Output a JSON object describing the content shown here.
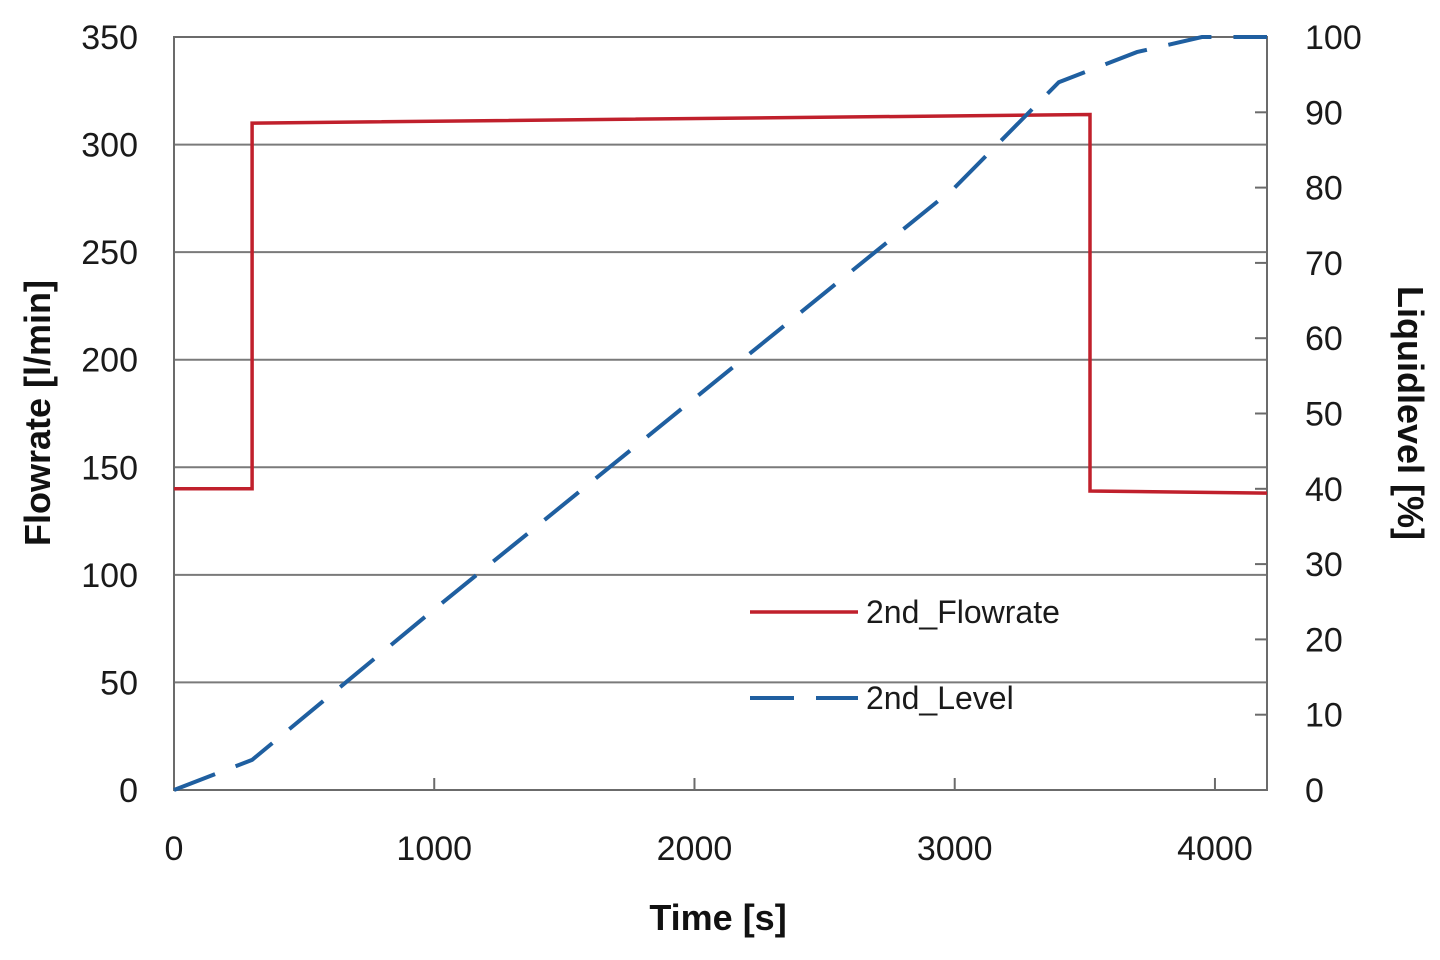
{
  "chart_data": {
    "type": "line",
    "title": "",
    "xlabel": "Time [s]",
    "ylabel": "Flowrate [l/min]",
    "y2label": "Liquidlevel [%]",
    "xlim": [
      0,
      4200
    ],
    "ylim": [
      0,
      350
    ],
    "y2lim": [
      0,
      100
    ],
    "xticks": [
      0,
      1000,
      2000,
      3000,
      4000
    ],
    "yticks": [
      0,
      50,
      100,
      150,
      200,
      250,
      300,
      350
    ],
    "y2ticks": [
      0,
      10,
      20,
      30,
      40,
      50,
      60,
      70,
      80,
      90,
      100
    ],
    "grid": true,
    "legend_position": "bottom-center",
    "series": [
      {
        "name": "2nd_Flowrate",
        "axis": "left",
        "color": "#c0202c",
        "style": "solid",
        "x": [
          0,
          300,
          300,
          3520,
          3520,
          4200
        ],
        "y": [
          140,
          140,
          310,
          314,
          139,
          138
        ]
      },
      {
        "name": "2nd_Level",
        "axis": "right",
        "color": "#1f5fa0",
        "style": "dashed",
        "x": [
          0,
          300,
          1000,
          2000,
          3000,
          3400,
          3700,
          3950,
          4200
        ],
        "y": [
          0,
          4,
          24,
          52,
          80,
          94,
          98,
          100,
          100
        ]
      }
    ]
  }
}
